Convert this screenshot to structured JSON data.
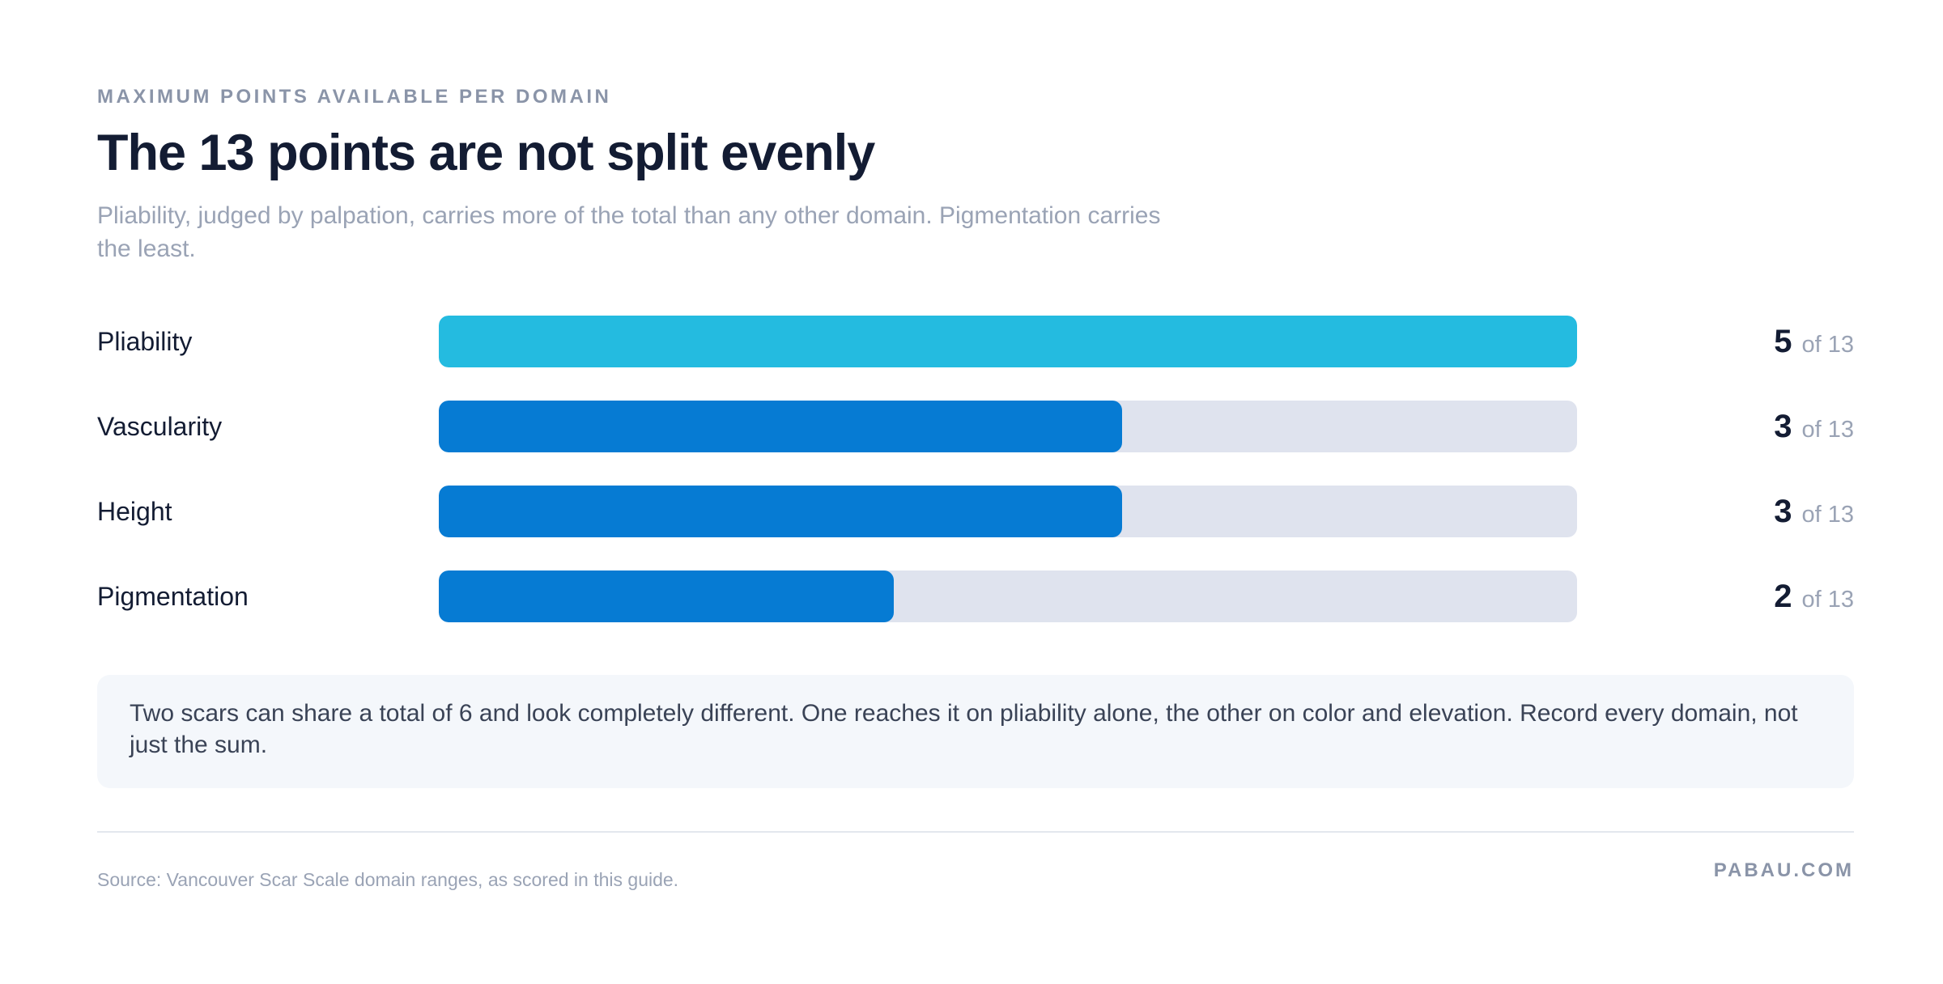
{
  "header": {
    "eyebrow": "MAXIMUM POINTS AVAILABLE PER DOMAIN",
    "title": "The 13 points are not split evenly",
    "subtitle": "Pliability, judged by palpation, carries more of the total than any other domain. Pigmentation carries the least."
  },
  "chart_data": {
    "type": "bar",
    "orientation": "horizontal",
    "categories": [
      "Pliability",
      "Vascularity",
      "Height",
      "Pigmentation"
    ],
    "values": [
      5,
      3,
      3,
      2
    ],
    "value_suffix": "of 13",
    "xlim": [
      0,
      5
    ],
    "grid": false,
    "colors": {
      "highlight": "#24bbe0",
      "default": "#067bd3",
      "track": "#dfe3ee"
    },
    "highlight_index": 0
  },
  "note": {
    "text": "Two scars can share a total of 6 and look completely different. One reaches it on pliability alone, the other on color and elevation. Record every domain, not just the sum."
  },
  "footer": {
    "source": "Source: Vancouver Scar Scale domain ranges, as scored in this guide.",
    "brand": "PABAU.COM"
  }
}
